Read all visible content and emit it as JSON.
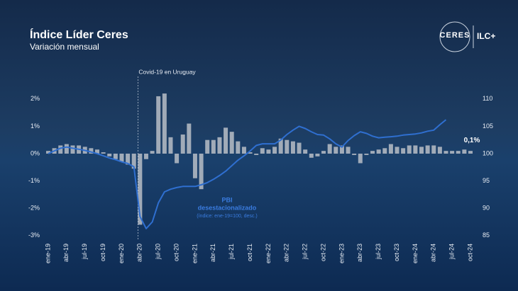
{
  "header": {
    "title": "Índice Líder Ceres",
    "subtitle": "Variación mensual",
    "logo_left": "CERES",
    "logo_right": "ILC+"
  },
  "chart_data": {
    "type": "bar_line",
    "categories": [
      "ene-19",
      null,
      null,
      "abr-19",
      null,
      null,
      "jul-19",
      null,
      null,
      "oct-19",
      null,
      null,
      "ene-20",
      null,
      null,
      "abr-20",
      null,
      null,
      "jul-20",
      null,
      null,
      "oct-20",
      null,
      null,
      "ene-21",
      null,
      null,
      "abr-21",
      null,
      null,
      "jul-21",
      null,
      null,
      "oct-21",
      null,
      null,
      "ene-22",
      null,
      null,
      "abr-22",
      null,
      null,
      "jul-22",
      null,
      null,
      "oct-22",
      null,
      null,
      "ene-23",
      null,
      null,
      "abr-23",
      null,
      null,
      "jul-23",
      null,
      null,
      "oct-23",
      null,
      null,
      "ene-24",
      null,
      null,
      "abr-24",
      null,
      null,
      "jul-24",
      null,
      null,
      "oct-24"
    ],
    "series": [
      {
        "color": "#b9bec7",
        "values": [
          0.1,
          0.2,
          0.3,
          0.35,
          0.3,
          0.3,
          0.25,
          0.2,
          0.15,
          0.05,
          -0.1,
          -0.2,
          -0.3,
          -0.4,
          -0.55,
          -2.6,
          -0.2,
          0.1,
          2.1,
          2.2,
          0.6,
          -0.35,
          0.7,
          1.1,
          -0.9,
          -1.3,
          0.5,
          0.5,
          0.6,
          0.95,
          0.8,
          0.45,
          0.25,
          0.05,
          -0.05,
          0.2,
          0.15,
          0.25,
          0.55,
          0.5,
          0.45,
          0.4,
          0.15,
          -0.15,
          -0.1,
          0.1,
          0.35,
          0.25,
          0.3,
          0.25,
          -0.05,
          -0.35,
          -0.05,
          0.1,
          0.15,
          0.2,
          0.35,
          0.25,
          0.2,
          0.3,
          0.3,
          0.25,
          0.3,
          0.3,
          0.25,
          0.1,
          0.1,
          0.1,
          0.15,
          0.1
        ],
        "value_labels": [
          null,
          null,
          null,
          null,
          null,
          null,
          null,
          null,
          null,
          null,
          null,
          null,
          null,
          null,
          null,
          null,
          null,
          null,
          null,
          null,
          null,
          null,
          null,
          null,
          null,
          null,
          null,
          null,
          null,
          null,
          null,
          null,
          null,
          null,
          null,
          null,
          null,
          null,
          null,
          null,
          null,
          null,
          null,
          null,
          null,
          null,
          null,
          null,
          null,
          null,
          null,
          null,
          null,
          null,
          null,
          null,
          null,
          null,
          null,
          null,
          null,
          null,
          null,
          null,
          null,
          null,
          null,
          null,
          null,
          "0,1%"
        ]
      },
      {
        "name": [
          "PBI",
          "desestacionalizado"
        ],
        "note": "(índice: ene-19=100, desc.)",
        "color": "#2f6fd0",
        "axis": "y2",
        "values": [
          100,
          100.5,
          101,
          101.2,
          101,
          100.8,
          100.6,
          100.3,
          100,
          99.6,
          99.2,
          98.9,
          98.5,
          98.2,
          97.6,
          88.5,
          86.3,
          87.5,
          91,
          93,
          93.5,
          93.8,
          94,
          94,
          94,
          94.3,
          94.7,
          95.3,
          96,
          96.8,
          97.8,
          98.8,
          99.6,
          100.5,
          101.5,
          101.8,
          101.8,
          101.8,
          102.5,
          103.5,
          104.3,
          105,
          104.6,
          104,
          103.5,
          103.4,
          102.7,
          101.8,
          101.2,
          102.4,
          103.3,
          104,
          103.7,
          103.2,
          102.9,
          103,
          103.1,
          103.2,
          103.4,
          103.5,
          103.6,
          103.8,
          104.1,
          104.3,
          105.3,
          106.2,
          null,
          null,
          null,
          null
        ]
      }
    ],
    "ylim": [
      -3,
      2.5
    ],
    "yticks": [
      {
        "value": 2,
        "label": "2%"
      },
      {
        "value": 1,
        "label": "1%"
      },
      {
        "value": 0,
        "label": "0%"
      },
      {
        "value": -1,
        "label": "-1%"
      },
      {
        "value": -2,
        "label": "-2%"
      },
      {
        "value": -3,
        "label": "-3%"
      }
    ],
    "y2lim": [
      85,
      112.5
    ],
    "y2ticks": [
      110,
      105,
      100,
      95,
      90,
      85
    ],
    "annotation": {
      "text": "Covid-19 en Uruguay",
      "at": "abr-20"
    }
  }
}
